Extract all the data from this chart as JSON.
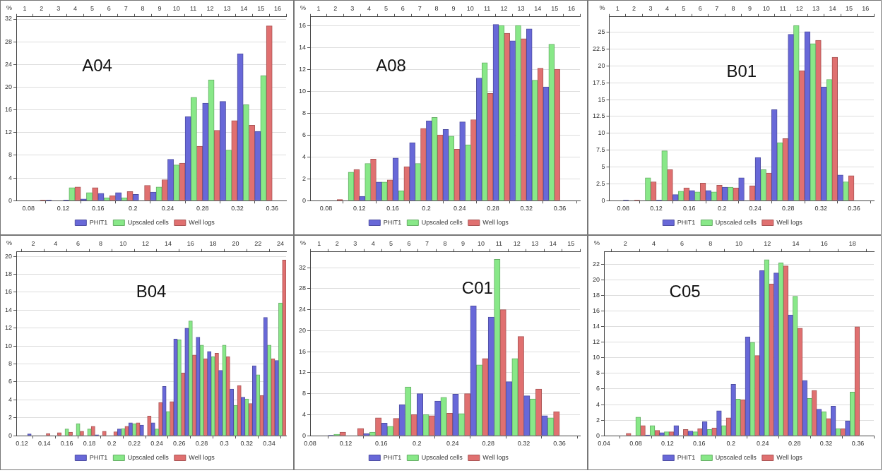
{
  "chart_data": [
    {
      "type": "histogram",
      "title": "A04",
      "ylabel": "%",
      "legend": "bottom",
      "grid": "y",
      "bins": [
        0.08,
        0.1,
        0.12,
        0.14,
        0.16,
        0.18,
        0.2,
        0.22,
        0.24,
        0.26,
        0.28,
        0.3,
        0.32,
        0.34,
        0.36
      ],
      "xlim": [
        0.066,
        0.376
      ],
      "xticks": [
        0.08,
        0.12,
        0.16,
        0.2,
        0.24,
        0.28,
        0.32,
        0.36
      ],
      "ylim": [
        0,
        32.4
      ],
      "yticks": [
        0,
        4,
        8,
        12,
        16,
        20,
        24,
        28,
        32
      ],
      "x2lim": [
        0.5,
        16.5
      ],
      "x2ticks": [
        1,
        2,
        3,
        4,
        5,
        6,
        7,
        8,
        9,
        10,
        11,
        12,
        13,
        14,
        15,
        16
      ],
      "series": [
        {
          "name": "PHIT1",
          "color": "#6868d8",
          "values": [
            0,
            0.1,
            0.1,
            0.3,
            1.3,
            1.4,
            1.1,
            1.5,
            7.3,
            14.8,
            17.2,
            17.5,
            25.9,
            12.2
          ]
        },
        {
          "name": "Upscaled cells",
          "color": "#88e888",
          "values": [
            0,
            0,
            2.3,
            1.4,
            0.5,
            0.5,
            0,
            2.4,
            6.3,
            18.2,
            21.3,
            8.9,
            16.9,
            22.0
          ]
        },
        {
          "name": "Well logs",
          "color": "#e07070",
          "values": [
            0.1,
            0,
            2.4,
            2.3,
            0.9,
            1.6,
            2.7,
            3.7,
            6.6,
            9.6,
            12.4,
            14.1,
            13.3,
            30.8
          ]
        }
      ]
    },
    {
      "type": "histogram",
      "title": "A08",
      "ylabel": "%",
      "legend": "bottom",
      "grid": "y",
      "bins": [
        0.08,
        0.1,
        0.12,
        0.14,
        0.16,
        0.18,
        0.2,
        0.22,
        0.24,
        0.26,
        0.28,
        0.3,
        0.32,
        0.34,
        0.36
      ],
      "xlim": [
        0.061,
        0.384
      ],
      "xticks": [
        0.08,
        0.12,
        0.16,
        0.2,
        0.24,
        0.28,
        0.32,
        0.36
      ],
      "ylim": [
        0,
        16.8
      ],
      "yticks": [
        0,
        2,
        4,
        6,
        8,
        10,
        12,
        14,
        16
      ],
      "x2lim": [
        0.5,
        16.5
      ],
      "x2ticks": [
        1,
        2,
        3,
        4,
        5,
        6,
        7,
        8,
        9,
        10,
        11,
        12,
        13,
        14,
        15,
        16
      ],
      "series": [
        {
          "name": "PHIT1",
          "color": "#6868d8",
          "values": [
            0,
            0,
            0.4,
            1.7,
            3.9,
            5.3,
            7.3,
            6.5,
            7.2,
            11.2,
            16.1,
            14.6,
            15.7,
            10.4
          ]
        },
        {
          "name": "Upscaled cells",
          "color": "#88e888",
          "values": [
            0,
            2.6,
            3.4,
            1.7,
            0.9,
            3.4,
            7.6,
            5.9,
            5.1,
            12.6,
            16.0,
            16.0,
            11.0,
            14.3
          ]
        },
        {
          "name": "Well logs",
          "color": "#e07070",
          "values": [
            0.1,
            2.85,
            3.8,
            1.9,
            3.1,
            6.6,
            6.0,
            4.7,
            7.4,
            9.8,
            15.3,
            14.8,
            12.1,
            12.0
          ]
        }
      ]
    },
    {
      "type": "histogram",
      "title": "B01",
      "ylabel": "%",
      "legend": "bottom",
      "grid": "y",
      "bins": [
        0.08,
        0.1,
        0.12,
        0.14,
        0.16,
        0.18,
        0.2,
        0.22,
        0.24,
        0.26,
        0.28,
        0.3,
        0.32,
        0.34,
        0.36
      ],
      "xlim": [
        0.063,
        0.384
      ],
      "xticks": [
        0.08,
        0.12,
        0.16,
        0.2,
        0.24,
        0.28,
        0.32,
        0.36
      ],
      "ylim": [
        0,
        27.3
      ],
      "yticks": [
        0,
        2.5,
        5,
        7.5,
        10,
        12.5,
        15,
        17.5,
        20,
        22.5,
        25
      ],
      "x2lim": [
        0.5,
        16.5
      ],
      "x2ticks": [
        1,
        2,
        3,
        4,
        5,
        6,
        7,
        8,
        9,
        10,
        11,
        12,
        13,
        14,
        15,
        16
      ],
      "series": [
        {
          "name": "PHIT1",
          "color": "#6868d8",
          "values": [
            0.1,
            0,
            0.1,
            0.9,
            1.5,
            1.5,
            2.0,
            3.4,
            6.4,
            13.5,
            24.7,
            25.1,
            16.9,
            3.8
          ]
        },
        {
          "name": "Upscaled cells",
          "color": "#88e888",
          "values": [
            0,
            3.4,
            7.4,
            1.4,
            1.3,
            1.3,
            2.0,
            0,
            4.6,
            8.6,
            26.0,
            23.3,
            18.0,
            2.8
          ]
        },
        {
          "name": "Well logs",
          "color": "#e07070",
          "values": [
            0.1,
            2.8,
            4.6,
            1.9,
            2.6,
            2.3,
            1.9,
            2.2,
            4.1,
            9.2,
            19.3,
            23.8,
            21.3,
            3.7
          ]
        }
      ]
    },
    {
      "type": "histogram",
      "title": "B04",
      "ylabel": "%",
      "legend": "bottom",
      "grid": "y",
      "bins": [
        0.115,
        0.125,
        0.135,
        0.145,
        0.155,
        0.165,
        0.175,
        0.185,
        0.195,
        0.205,
        0.215,
        0.225,
        0.235,
        0.245,
        0.255,
        0.265,
        0.275,
        0.285,
        0.295,
        0.305,
        0.315,
        0.325,
        0.335,
        0.345,
        0.355
      ],
      "xlim": [
        0.115,
        0.355
      ],
      "xticks": [
        0.12,
        0.14,
        0.16,
        0.18,
        0.2,
        0.22,
        0.24,
        0.26,
        0.28,
        0.3,
        0.32,
        0.34
      ],
      "ylim": [
        0,
        20.5
      ],
      "yticks": [
        0,
        2,
        4,
        6,
        8,
        10,
        12,
        14,
        16,
        18,
        20
      ],
      "x2lim": [
        0.5,
        24.5
      ],
      "x2ticks": [
        2,
        4,
        6,
        8,
        10,
        12,
        14,
        16,
        18,
        20,
        22,
        24
      ],
      "series": [
        {
          "name": "PHIT1",
          "color": "#6868d8",
          "values": [
            0,
            0.2,
            0,
            0,
            0,
            0,
            0,
            0.1,
            0,
            0.75,
            1.45,
            1.2,
            1.45,
            5.5,
            10.8,
            12.0,
            11.0,
            9.4,
            7.3,
            5.2,
            4.3,
            7.8,
            13.2,
            8.4
          ]
        },
        {
          "name": "Upscaled cells",
          "color": "#88e888",
          "values": [
            0,
            0,
            0,
            0,
            0.75,
            1.35,
            0.75,
            0,
            0,
            0.8,
            1.35,
            0,
            0.75,
            2.7,
            10.7,
            12.8,
            10.1,
            8.8,
            10.1,
            3.4,
            4.1,
            6.8,
            10.1,
            14.8
          ]
        },
        {
          "name": "Well logs",
          "color": "#e07070",
          "values": [
            0,
            0,
            0.25,
            0.35,
            0.4,
            0.5,
            1.05,
            0.5,
            0.45,
            1.05,
            1.45,
            2.2,
            3.7,
            3.8,
            7.0,
            9.0,
            8.6,
            9.2,
            8.8,
            5.6,
            3.6,
            4.5,
            8.6,
            19.6
          ]
        }
      ]
    },
    {
      "type": "histogram",
      "title": "C01",
      "ylabel": "%",
      "legend": "bottom",
      "grid": "y",
      "bins": [
        0.08,
        0.1,
        0.12,
        0.14,
        0.16,
        0.18,
        0.2,
        0.22,
        0.24,
        0.26,
        0.28,
        0.3,
        0.32,
        0.34,
        0.36
      ],
      "xlim": [
        0.08,
        0.383
      ],
      "xticks": [
        0.08,
        0.12,
        0.16,
        0.2,
        0.24,
        0.28,
        0.32,
        0.36
      ],
      "ylim": [
        0,
        35
      ],
      "yticks": [
        0,
        4,
        8,
        12,
        16,
        20,
        24,
        28,
        32
      ],
      "x2lim": [
        0.5,
        15.5
      ],
      "x2ticks": [
        1,
        2,
        3,
        4,
        5,
        6,
        7,
        8,
        9,
        10,
        11,
        12,
        13,
        14,
        15
      ],
      "series": [
        {
          "name": "PHIT1",
          "color": "#6868d8",
          "values": [
            0,
            0.1,
            0,
            0.4,
            2.4,
            5.9,
            8.0,
            6.6,
            7.9,
            24.7,
            22.6,
            10.3,
            7.6,
            3.8
          ]
        },
        {
          "name": "Upscaled cells",
          "color": "#88e888",
          "values": [
            0,
            0.3,
            0,
            0.7,
            1.8,
            9.3,
            4.0,
            7.3,
            4.2,
            13.5,
            33.6,
            14.7,
            7.0,
            3.4
          ]
        },
        {
          "name": "Well logs",
          "color": "#e07070",
          "values": [
            0,
            0.7,
            1.4,
            3.4,
            3.3,
            4.0,
            3.8,
            4.3,
            8.0,
            14.7,
            24.0,
            18.9,
            8.9,
            4.6
          ]
        }
      ]
    },
    {
      "type": "histogram",
      "title": "C05",
      "ylabel": "%",
      "legend": "bottom",
      "grid": "y",
      "bins": [
        0.056,
        0.074,
        0.092,
        0.11,
        0.128,
        0.146,
        0.164,
        0.182,
        0.2,
        0.218,
        0.236,
        0.254,
        0.272,
        0.29,
        0.308,
        0.326,
        0.344,
        0.362
      ],
      "xlim": [
        0.04,
        0.38
      ],
      "xticks": [
        0.04,
        0.08,
        0.12,
        0.16,
        0.2,
        0.24,
        0.28,
        0.32,
        0.36
      ],
      "ylim": [
        0,
        23.6
      ],
      "yticks": [
        0,
        2,
        4,
        6,
        8,
        10,
        12,
        14,
        16,
        18,
        20,
        22
      ],
      "x2lim": [
        0.5,
        19.5
      ],
      "x2ticks": [
        2,
        4,
        6,
        8,
        10,
        12,
        14,
        16,
        18
      ],
      "series": [
        {
          "name": "PHIT1",
          "color": "#6868d8",
          "values": [
            0,
            0,
            0.1,
            0.4,
            1.3,
            0.6,
            1.8,
            3.2,
            6.6,
            12.7,
            21.2,
            20.9,
            15.5,
            7.1,
            3.4,
            3.8,
            1.9
          ]
        },
        {
          "name": "Upscaled cells",
          "color": "#88e888",
          "values": [
            0,
            2.4,
            1.3,
            0.5,
            0,
            0.5,
            0.8,
            1.3,
            4.7,
            12.0,
            22.6,
            22.2,
            17.9,
            4.8,
            3.1,
            0.9,
            5.6
          ]
        },
        {
          "name": "Well logs",
          "color": "#e07070",
          "values": [
            0.3,
            1.3,
            0.7,
            0.5,
            0.8,
            0.9,
            1.0,
            2.3,
            4.6,
            10.3,
            19.5,
            21.8,
            13.8,
            5.8,
            2.2,
            0.9,
            14.0
          ]
        }
      ]
    }
  ]
}
